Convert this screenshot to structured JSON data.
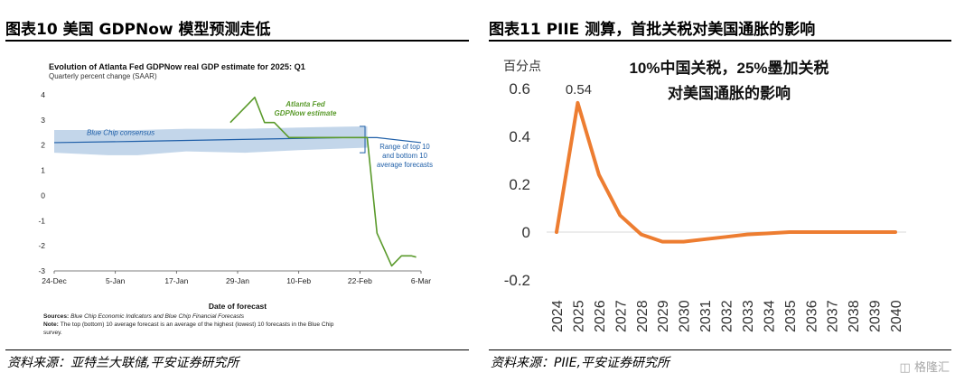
{
  "left_panel": {
    "title": "图表10    美国 GDPNow 模型预测走低",
    "source": "资料来源：亚特兰大联储,平安证券研究所"
  },
  "right_panel": {
    "title": "图表11    PIIE 测算，首批关税对美国通胀的影响",
    "source": "资料来源：PIIE,平安证券研究所"
  },
  "watermark": "格隆汇",
  "chart_data": [
    {
      "type": "line",
      "title": "Evolution of Atlanta Fed GDPNow real GDP estimate for 2025: Q1",
      "subtitle": "Quarterly percent change (SAAR)",
      "xlabel": "Date of forecast",
      "ylabel": "",
      "ylim": [
        -3,
        4
      ],
      "yticks": [
        "4",
        "3",
        "2",
        "1",
        "0",
        "-1",
        "-2",
        "-3"
      ],
      "xticks": [
        "24-Dec",
        "5-Jan",
        "17-Jan",
        "29-Jan",
        "10-Feb",
        "22-Feb",
        "6-Mar"
      ],
      "x_range": [
        "2024-12-24",
        "2025-03-09"
      ],
      "grid": false,
      "annotations": {
        "gdpnow": "Atlanta Fed GDPNow estimate",
        "blue_chip": "Blue Chip consensus",
        "range": "Range of top 10 and bottom 10 average forecasts"
      },
      "notes": {
        "sources_label": "Sources:",
        "sources_text": "Blue Chip Economic Indicators and Blue Chip Financial Forecasts",
        "note_label": "Note:",
        "note_text": "The top (bottom) 10 average forecast is an average of the highest (lowest) 10 forecasts in the Blue Chip survey."
      },
      "series": [
        {
          "name": "Atlanta Fed GDPNow estimate",
          "color": "#5a9a2b",
          "points": [
            [
              "2025-01-29",
              2.9
            ],
            [
              "2025-02-03",
              3.9
            ],
            [
              "2025-02-05",
              2.9
            ],
            [
              "2025-02-07",
              2.9
            ],
            [
              "2025-02-10",
              2.3
            ],
            [
              "2025-02-12",
              2.3
            ],
            [
              "2025-02-17",
              2.3
            ],
            [
              "2025-02-19",
              2.3
            ],
            [
              "2025-02-21",
              2.3
            ],
            [
              "2025-02-26",
              2.3
            ],
            [
              "2025-02-28",
              -1.5
            ],
            [
              "2025-03-03",
              -2.8
            ],
            [
              "2025-03-05",
              -2.4
            ],
            [
              "2025-03-07",
              -2.4
            ],
            [
              "2025-03-08",
              -2.45
            ]
          ]
        },
        {
          "name": "Blue Chip consensus",
          "color": "#1f5fa8",
          "points": [
            [
              "2024-12-24",
              2.1
            ],
            [
              "2025-01-10",
              2.15
            ],
            [
              "2025-01-24",
              2.2
            ],
            [
              "2025-02-07",
              2.25
            ],
            [
              "2025-02-21",
              2.3
            ],
            [
              "2025-02-28",
              2.3
            ],
            [
              "2025-03-09",
              2.1
            ]
          ]
        },
        {
          "name": "Range of top 10 and bottom 10 average forecasts",
          "color": "#b8cfe6",
          "upper": [
            [
              "2024-12-24",
              2.6
            ],
            [
              "2025-01-10",
              2.6
            ],
            [
              "2025-01-20",
              2.65
            ],
            [
              "2025-02-01",
              2.65
            ],
            [
              "2025-02-12",
              2.7
            ],
            [
              "2025-02-26",
              2.75
            ]
          ],
          "lower": [
            [
              "2024-12-24",
              1.7
            ],
            [
              "2025-01-04",
              1.6
            ],
            [
              "2025-01-10",
              1.6
            ],
            [
              "2025-01-20",
              1.75
            ],
            [
              "2025-02-01",
              1.7
            ],
            [
              "2025-02-12",
              1.8
            ],
            [
              "2025-02-26",
              1.9
            ]
          ]
        }
      ]
    },
    {
      "type": "line",
      "title": "10%中国关税，25%墨加关税\n对美国通胀的影响",
      "ylabel": "百分点",
      "xlabel": "",
      "ylim": [
        -0.2,
        0.6
      ],
      "yticks": [
        "0.6",
        "0.4",
        "0.2",
        "0",
        "-0.2"
      ],
      "grid": false,
      "categories": [
        "2024",
        "2025",
        "2026",
        "2027",
        "2028",
        "2029",
        "2030",
        "2031",
        "2032",
        "2033",
        "2034",
        "2035",
        "2036",
        "2037",
        "2038",
        "2039",
        "2040"
      ],
      "data_labels": [
        {
          "x": "2025",
          "text": "0.54"
        }
      ],
      "series": [
        {
          "name": "",
          "color": "#ed7d31",
          "values": [
            0,
            0.54,
            0.24,
            0.07,
            -0.01,
            -0.04,
            -0.04,
            -0.03,
            -0.02,
            -0.01,
            -0.005,
            0,
            0,
            0,
            0,
            0,
            0
          ]
        }
      ]
    }
  ]
}
